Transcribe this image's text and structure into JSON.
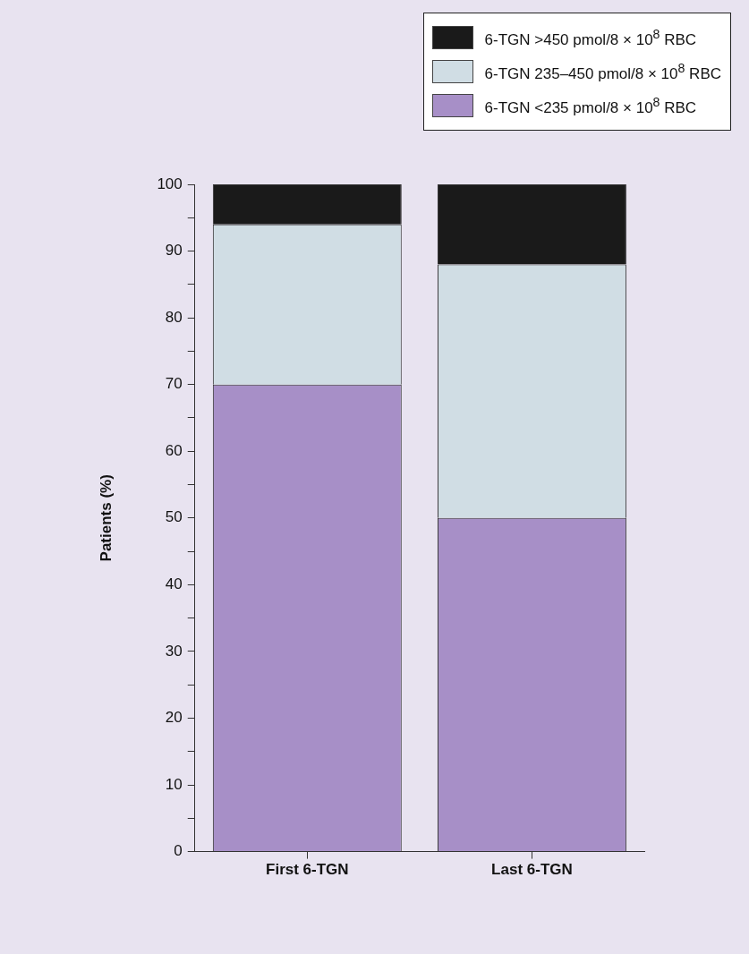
{
  "chart_data": {
    "type": "bar",
    "stacked": true,
    "ylabel": "Patients (%)",
    "categories": [
      "First 6-TGN",
      "Last 6-TGN"
    ],
    "series": [
      {
        "name": "6-TGN <235 pmol/8 × 10$^{8}$ RBC",
        "color": "#a78fc7",
        "values": [
          70,
          50
        ]
      },
      {
        "name": "6-TGN 235–450 pmol/8 × 10$^{8}$ RBC",
        "color": "#d0dde4",
        "values": [
          24,
          38
        ]
      },
      {
        "name": "6-TGN >450 pmol/8 × 10$^{8}$ RBC",
        "color": "#1a1a1a",
        "values": [
          6,
          12
        ]
      }
    ],
    "ylim": [
      0,
      100
    ],
    "yticks": [
      0,
      {
        "value": 5,
        "label": null
      },
      10,
      {
        "value": 15,
        "label": null
      },
      20,
      {
        "value": 25,
        "label": null
      },
      30,
      {
        "value": 35,
        "label": null
      },
      40,
      {
        "value": 45,
        "label": null
      },
      50,
      {
        "value": 55,
        "label": null
      },
      60,
      {
        "value": 65,
        "label": null
      },
      70,
      {
        "value": 75,
        "label": null
      },
      80,
      {
        "value": 85,
        "label": null
      },
      90,
      {
        "value": 95,
        "label": null
      },
      100
    ],
    "legend": "top right"
  }
}
